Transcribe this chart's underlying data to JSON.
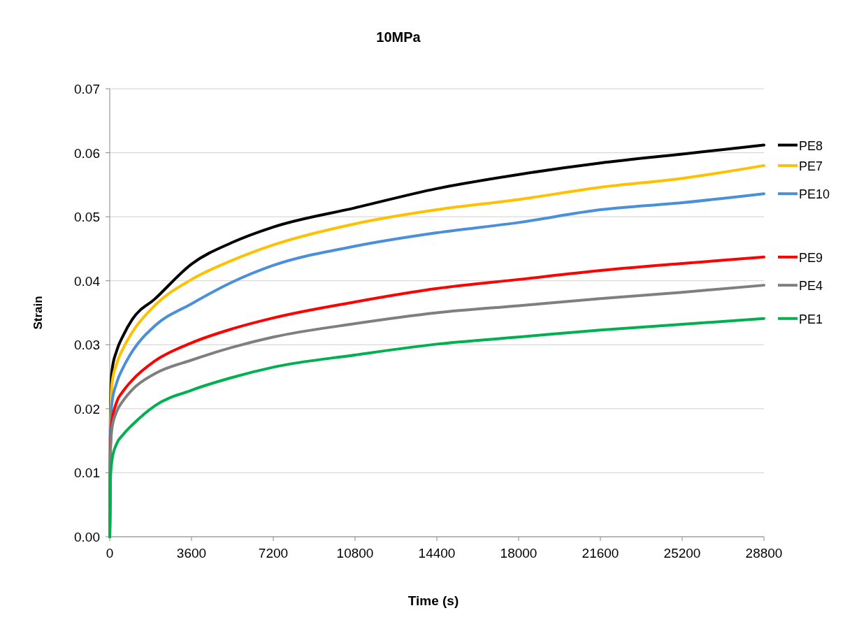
{
  "chart_data": {
    "type": "line",
    "title": "10MPa",
    "xlabel": "Time (s)",
    "ylabel": "Strain",
    "xlim": [
      0,
      28800
    ],
    "xticks": [
      0,
      3600,
      7200,
      10800,
      14400,
      18000,
      21600,
      25200,
      28800
    ],
    "ylim": [
      0,
      0.07
    ],
    "yticks": [
      {
        "value": 0,
        "label": "0.00"
      },
      0.01,
      0.02,
      0.03,
      0.04,
      0.05,
      0.06,
      0.07
    ],
    "grid": "y",
    "legend": "right",
    "marker": "none",
    "line_style": "solid",
    "x": [
      0,
      30,
      100,
      300,
      600,
      1000,
      2000,
      3600,
      5400,
      7200,
      10800,
      14400,
      18000,
      21600,
      25200,
      28800
    ],
    "series": [
      {
        "name": "PE8",
        "color": "#000000",
        "values": [
          0,
          0.02,
          0.026,
          0.029,
          0.0315,
          0.034,
          0.0372,
          0.0426,
          0.046,
          0.0484,
          0.0514,
          0.0544,
          0.0566,
          0.0584,
          0.0598,
          0.0612
        ]
      },
      {
        "name": "PE7",
        "color": "#ffc000",
        "values": [
          0,
          0.018,
          0.024,
          0.027,
          0.0295,
          0.032,
          0.0362,
          0.0402,
          0.0432,
          0.0456,
          0.0489,
          0.0511,
          0.0527,
          0.0546,
          0.056,
          0.058
        ]
      },
      {
        "name": "PE10",
        "color": "#4a8fd9",
        "values": [
          0,
          0.016,
          0.021,
          0.024,
          0.0265,
          0.029,
          0.033,
          0.0364,
          0.0398,
          0.0424,
          0.0454,
          0.0475,
          0.0491,
          0.0511,
          0.0522,
          0.0536
        ]
      },
      {
        "name": "PE9",
        "color": "#ff0000",
        "values": [
          0,
          0.014,
          0.018,
          0.021,
          0.0228,
          0.0245,
          0.0275,
          0.0303,
          0.0325,
          0.0342,
          0.0367,
          0.0388,
          0.0402,
          0.0416,
          0.0427,
          0.0437
        ]
      },
      {
        "name": "PE4",
        "color": "#7f7f7f",
        "values": [
          0,
          0.013,
          0.017,
          0.0195,
          0.0213,
          0.023,
          0.0255,
          0.0276,
          0.0296,
          0.0312,
          0.0333,
          0.035,
          0.0361,
          0.0372,
          0.0382,
          0.0393
        ]
      },
      {
        "name": "PE1",
        "color": "#00b050",
        "values": [
          0,
          0.009,
          0.012,
          0.0145,
          0.016,
          0.0175,
          0.0205,
          0.0229,
          0.0249,
          0.0265,
          0.0284,
          0.0301,
          0.0312,
          0.0323,
          0.0332,
          0.0341
        ]
      }
    ]
  }
}
